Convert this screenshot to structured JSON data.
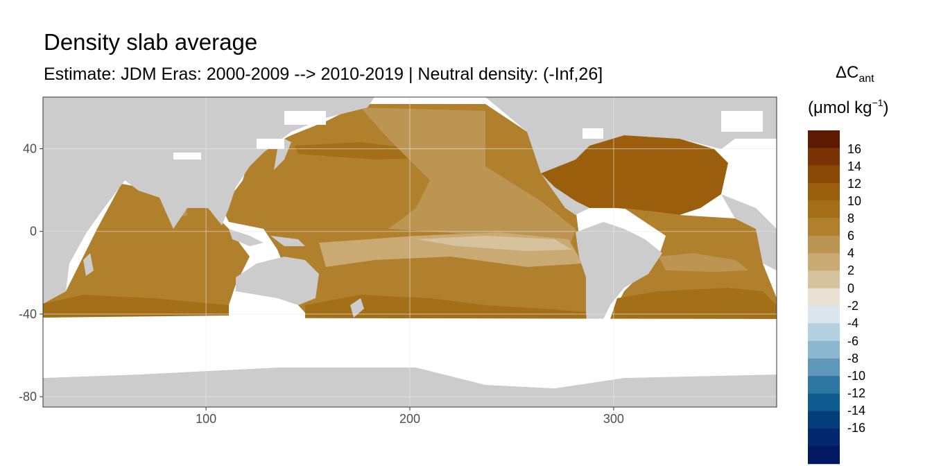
{
  "title": "Density slab average",
  "subtitle": "Estimate: JDM Eras: 2000-2009 --> 2010-2019 | Neutral density: (-Inf,26]",
  "legend": {
    "title_line1_symbol": "ΔC",
    "title_line1_sub": "ant",
    "title_line2_main": "(μmol kg",
    "title_line2_sup": "−1",
    "title_line2_end": ")",
    "bins": [
      {
        "label": "16",
        "color": "#5c1a02"
      },
      {
        "label": "14",
        "color": "#7a3304"
      },
      {
        "label": "",
        "color": "#8a4806"
      },
      {
        "label": "12",
        "color": "#9a5e0d"
      },
      {
        "label": "",
        "color": "#a46f19"
      },
      {
        "label": "10",
        "color": "#b0802d"
      },
      {
        "label": "8",
        "color": "#bd9553"
      },
      {
        "label": "6",
        "color": "#c8aa72"
      },
      {
        "label": "4",
        "color": "#d7c29e"
      },
      {
        "label": "2",
        "color": "#e9e1d3"
      },
      {
        "label": "0",
        "color": "#dbe7ed"
      },
      {
        "label": "-2",
        "color": "#b5d0df"
      },
      {
        "label": "-4",
        "color": "#8cb7cf"
      },
      {
        "label": "-6",
        "color": "#5f98ba"
      },
      {
        "label": "-8",
        "color": "#2e76a3"
      },
      {
        "label": "-10",
        "color": "#0d5b8f"
      },
      {
        "label": "-12",
        "color": "#033e7b"
      },
      {
        "label": "-14",
        "color": "#03286f"
      },
      {
        "label": "-16",
        "color": "#011863"
      }
    ]
  },
  "chart_data": {
    "type": "heatmap",
    "xlim": [
      20,
      380
    ],
    "ylim": [
      -85,
      65
    ],
    "x_ticks": [
      "100",
      "200",
      "300"
    ],
    "x_tick_values": [
      100,
      200,
      300
    ],
    "y_ticks": [
      "40",
      "0",
      "-40",
      "-80"
    ],
    "y_tick_values": [
      40,
      0,
      -40,
      -80
    ],
    "grid": true,
    "colors": {
      "land": "#cccccc",
      "no_data": "#ffffff",
      "grid": "#ebebeb"
    },
    "regions": [
      {
        "name": "pacific-base",
        "value": 8
      },
      {
        "name": "east-pacific-tongue",
        "value": 6
      },
      {
        "name": "equatorial-pacific",
        "value": 4
      },
      {
        "name": "north-atlantic",
        "value": 12
      },
      {
        "name": "kuroshio",
        "value": 10
      },
      {
        "name": "southern-band",
        "value": 10
      },
      {
        "name": "indian-ocean",
        "value": 8
      },
      {
        "name": "south-atlantic",
        "value": 8
      }
    ]
  }
}
